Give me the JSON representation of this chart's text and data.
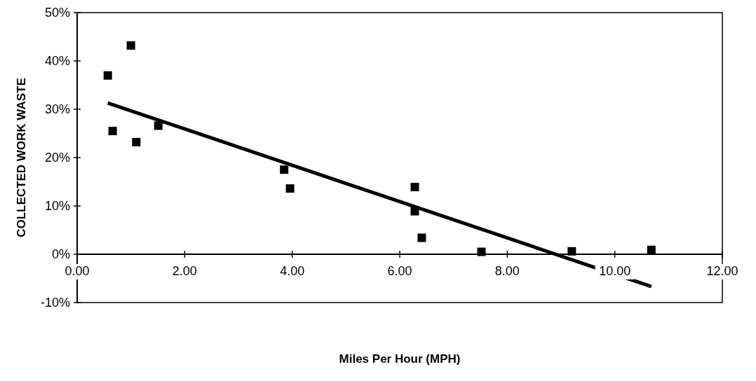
{
  "chart_data": {
    "type": "scatter",
    "xlabel": "Miles Per Hour (MPH)",
    "ylabel": "COLLECTED WORK WASTE",
    "xlim": [
      0,
      12
    ],
    "ylim": [
      -10,
      50
    ],
    "xticks": [
      {
        "value": 0,
        "label": "0.00"
      },
      {
        "value": 2,
        "label": "2.00"
      },
      {
        "value": 4,
        "label": "4.00"
      },
      {
        "value": 6,
        "label": "6.00"
      },
      {
        "value": 8,
        "label": "8.00"
      },
      {
        "value": 10,
        "label": "10.00"
      },
      {
        "value": 12,
        "label": "12.00"
      }
    ],
    "yticks": [
      {
        "value": -10,
        "label": "-10%"
      },
      {
        "value": 0,
        "label": "0%"
      },
      {
        "value": 10,
        "label": "10%"
      },
      {
        "value": 20,
        "label": "20%"
      },
      {
        "value": 30,
        "label": "30%"
      },
      {
        "value": 40,
        "label": "40%"
      },
      {
        "value": 50,
        "label": "50%"
      }
    ],
    "grid": false,
    "marker": "square",
    "series": [
      {
        "color": "#000000",
        "x": [
          0.57,
          0.66,
          1.0,
          1.1,
          1.51,
          3.85,
          3.96,
          6.28,
          6.28,
          6.41,
          7.52,
          9.2,
          10.68
        ],
        "values": [
          37,
          25.5,
          43.2,
          23.2,
          26.6,
          17.5,
          13.6,
          13.9,
          8.9,
          3.4,
          0.5,
          0.6,
          0.9
        ]
      },
      {
        "type": "line",
        "color": "#000000",
        "line_style": "solid",
        "marker": "none",
        "x": [
          0.57,
          10.68
        ],
        "values": [
          31.3,
          -6.7
        ]
      }
    ]
  }
}
